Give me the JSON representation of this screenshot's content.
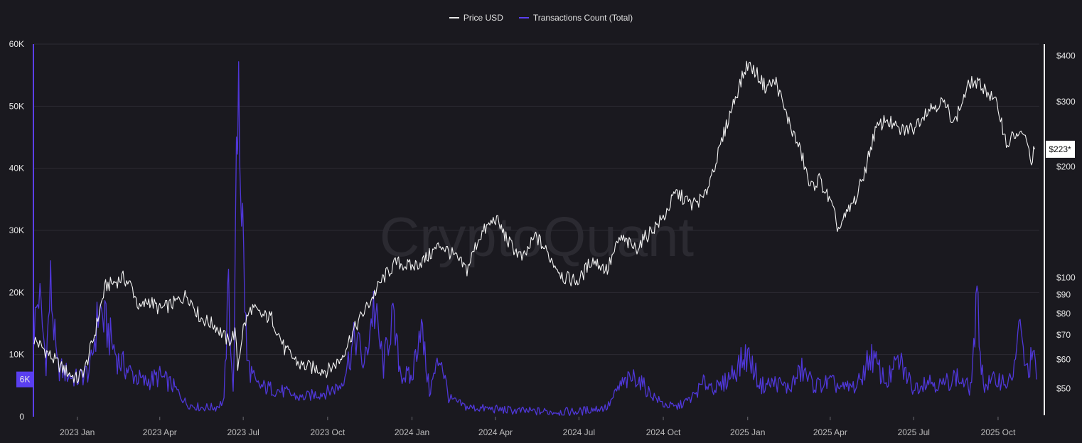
{
  "watermark": "CryptoQuant",
  "legend": [
    {
      "name": "Price USD",
      "color": "#e8e8e8"
    },
    {
      "name": "Transactions Count (Total)",
      "color": "#5a3ff0"
    }
  ],
  "current_price_label": "$223*",
  "current_tx_label": "6K",
  "chart_data": {
    "type": "line",
    "left_axis": {
      "title": "",
      "ticks": [
        "0",
        "10K",
        "20K",
        "30K",
        "40K",
        "50K",
        "60K"
      ],
      "values": [
        0,
        10000,
        20000,
        30000,
        40000,
        50000,
        60000
      ],
      "range": [
        0,
        60000
      ]
    },
    "right_axis": {
      "title": "",
      "scale": "log",
      "ticks": [
        "$50",
        "$60",
        "$70",
        "$80",
        "$90",
        "$100",
        "$200",
        "$300",
        "$400"
      ],
      "values": [
        50,
        60,
        70,
        80,
        90,
        100,
        200,
        300,
        400
      ]
    },
    "x_ticks": [
      "2023 Jan",
      "2023 Apr",
      "2023 Jul",
      "2023 Oct",
      "2024 Jan",
      "2024 Apr",
      "2024 Jul",
      "2024 Oct",
      "2025 Jan",
      "2025 Apr",
      "2025 Jul",
      "2025 Oct"
    ],
    "x_tick_dates": [
      "2023-01-01",
      "2023-04-01",
      "2023-07-01",
      "2023-10-01",
      "2024-01-01",
      "2024-04-01",
      "2024-07-01",
      "2024-10-01",
      "2025-01-01",
      "2025-04-01",
      "2025-07-01",
      "2025-10-01"
    ],
    "x_range": [
      "2022-11-15",
      "2025-11-15"
    ],
    "series": [
      {
        "name": "Price USD",
        "axis": "right",
        "points": [
          [
            "2022-11-15",
            68
          ],
          [
            "2022-12-01",
            62
          ],
          [
            "2022-12-15",
            57
          ],
          [
            "2023-01-01",
            53
          ],
          [
            "2023-01-10",
            57
          ],
          [
            "2023-01-20",
            70
          ],
          [
            "2023-02-01",
            95
          ],
          [
            "2023-02-10",
            97
          ],
          [
            "2023-02-20",
            100
          ],
          [
            "2023-03-01",
            95
          ],
          [
            "2023-03-10",
            82
          ],
          [
            "2023-03-20",
            87
          ],
          [
            "2023-04-01",
            82
          ],
          [
            "2023-04-15",
            85
          ],
          [
            "2023-05-01",
            90
          ],
          [
            "2023-05-15",
            78
          ],
          [
            "2023-06-01",
            74
          ],
          [
            "2023-06-15",
            67
          ],
          [
            "2023-06-22",
            71
          ],
          [
            "2023-06-25",
            57
          ],
          [
            "2023-07-01",
            73
          ],
          [
            "2023-07-10",
            83
          ],
          [
            "2023-07-20",
            79
          ],
          [
            "2023-08-01",
            78
          ],
          [
            "2023-08-15",
            64
          ],
          [
            "2023-09-01",
            58
          ],
          [
            "2023-09-15",
            57
          ],
          [
            "2023-10-01",
            56
          ],
          [
            "2023-10-15",
            60
          ],
          [
            "2023-11-01",
            74
          ],
          [
            "2023-11-15",
            85
          ],
          [
            "2023-12-01",
            100
          ],
          [
            "2023-12-15",
            110
          ],
          [
            "2024-01-01",
            107
          ],
          [
            "2024-01-15",
            112
          ],
          [
            "2024-02-01",
            123
          ],
          [
            "2024-02-15",
            115
          ],
          [
            "2024-03-01",
            105
          ],
          [
            "2024-03-15",
            130
          ],
          [
            "2024-04-01",
            145
          ],
          [
            "2024-04-15",
            125
          ],
          [
            "2024-05-01",
            112
          ],
          [
            "2024-05-15",
            130
          ],
          [
            "2024-06-01",
            112
          ],
          [
            "2024-06-15",
            100
          ],
          [
            "2024-07-01",
            98
          ],
          [
            "2024-07-15",
            112
          ],
          [
            "2024-08-01",
            105
          ],
          [
            "2024-08-15",
            128
          ],
          [
            "2024-09-01",
            120
          ],
          [
            "2024-09-15",
            132
          ],
          [
            "2024-10-01",
            145
          ],
          [
            "2024-10-15",
            170
          ],
          [
            "2024-11-01",
            158
          ],
          [
            "2024-11-15",
            165
          ],
          [
            "2024-12-01",
            220
          ],
          [
            "2024-12-15",
            290
          ],
          [
            "2025-01-01",
            380
          ],
          [
            "2025-01-10",
            360
          ],
          [
            "2025-01-20",
            330
          ],
          [
            "2025-02-01",
            340
          ],
          [
            "2025-02-10",
            285
          ],
          [
            "2025-02-20",
            245
          ],
          [
            "2025-03-01",
            215
          ],
          [
            "2025-03-10",
            175
          ],
          [
            "2025-03-20",
            185
          ],
          [
            "2025-04-01",
            160
          ],
          [
            "2025-04-10",
            135
          ],
          [
            "2025-04-20",
            150
          ],
          [
            "2025-05-01",
            168
          ],
          [
            "2025-05-10",
            200
          ],
          [
            "2025-05-20",
            250
          ],
          [
            "2025-06-01",
            270
          ],
          [
            "2025-06-15",
            250
          ],
          [
            "2025-07-01",
            255
          ],
          [
            "2025-07-15",
            285
          ],
          [
            "2025-08-01",
            300
          ],
          [
            "2025-08-15",
            265
          ],
          [
            "2025-09-01",
            340
          ],
          [
            "2025-09-15",
            330
          ],
          [
            "2025-10-01",
            290
          ],
          [
            "2025-10-10",
            230
          ],
          [
            "2025-10-20",
            245
          ],
          [
            "2025-11-01",
            240
          ],
          [
            "2025-11-05",
            205
          ],
          [
            "2025-11-10",
            223
          ]
        ]
      },
      {
        "name": "Transactions Count (Total)",
        "axis": "left",
        "points": [
          [
            "2022-11-15",
            14000
          ],
          [
            "2022-11-20",
            20000
          ],
          [
            "2022-11-28",
            9000
          ],
          [
            "2022-12-03",
            21000
          ],
          [
            "2022-12-10",
            8000
          ],
          [
            "2022-12-20",
            7000
          ],
          [
            "2023-01-01",
            6000
          ],
          [
            "2023-01-15",
            7500
          ],
          [
            "2023-01-25",
            17500
          ],
          [
            "2023-02-05",
            13000
          ],
          [
            "2023-02-15",
            9000
          ],
          [
            "2023-03-01",
            7000
          ],
          [
            "2023-03-15",
            5500
          ],
          [
            "2023-04-01",
            6500
          ],
          [
            "2023-04-15",
            5000
          ],
          [
            "2023-05-01",
            2000
          ],
          [
            "2023-05-15",
            1500
          ],
          [
            "2023-06-01",
            1500
          ],
          [
            "2023-06-10",
            2500
          ],
          [
            "2023-06-15",
            21000
          ],
          [
            "2023-06-20",
            3500
          ],
          [
            "2023-06-26",
            58000
          ],
          [
            "2023-06-28",
            41000
          ],
          [
            "2023-07-05",
            9000
          ],
          [
            "2023-07-15",
            5000
          ],
          [
            "2023-08-01",
            4500
          ],
          [
            "2023-08-15",
            4000
          ],
          [
            "2023-09-01",
            3000
          ],
          [
            "2023-09-15",
            3500
          ],
          [
            "2023-10-01",
            4000
          ],
          [
            "2023-10-15",
            5000
          ],
          [
            "2023-11-01",
            13000
          ],
          [
            "2023-11-10",
            8000
          ],
          [
            "2023-11-20",
            18000
          ],
          [
            "2023-12-01",
            8000
          ],
          [
            "2023-12-10",
            16000
          ],
          [
            "2023-12-20",
            7000
          ],
          [
            "2024-01-01",
            6000
          ],
          [
            "2024-01-10",
            15500
          ],
          [
            "2024-01-20",
            4000
          ],
          [
            "2024-02-01",
            10000
          ],
          [
            "2024-02-10",
            3000
          ],
          [
            "2024-03-01",
            1500
          ],
          [
            "2024-04-01",
            1200
          ],
          [
            "2024-05-01",
            900
          ],
          [
            "2024-06-01",
            800
          ],
          [
            "2024-07-01",
            800
          ],
          [
            "2024-07-15",
            1200
          ],
          [
            "2024-08-01",
            1500
          ],
          [
            "2024-08-15",
            5000
          ],
          [
            "2024-09-01",
            6500
          ],
          [
            "2024-09-15",
            4000
          ],
          [
            "2024-10-01",
            2000
          ],
          [
            "2024-10-15",
            1500
          ],
          [
            "2024-11-01",
            3000
          ],
          [
            "2024-11-15",
            5500
          ],
          [
            "2024-12-01",
            4500
          ],
          [
            "2024-12-15",
            7000
          ],
          [
            "2025-01-01",
            10000
          ],
          [
            "2025-01-15",
            5000
          ],
          [
            "2025-02-01",
            5500
          ],
          [
            "2025-02-15",
            4500
          ],
          [
            "2025-03-01",
            7500
          ],
          [
            "2025-03-15",
            5000
          ],
          [
            "2025-04-01",
            5500
          ],
          [
            "2025-04-15",
            4500
          ],
          [
            "2025-05-01",
            5000
          ],
          [
            "2025-05-15",
            10000
          ],
          [
            "2025-06-01",
            5500
          ],
          [
            "2025-06-15",
            9000
          ],
          [
            "2025-07-01",
            4500
          ],
          [
            "2025-07-15",
            6000
          ],
          [
            "2025-08-01",
            5000
          ],
          [
            "2025-08-15",
            6500
          ],
          [
            "2025-09-01",
            4500
          ],
          [
            "2025-09-08",
            18000
          ],
          [
            "2025-09-15",
            5000
          ],
          [
            "2025-10-01",
            6000
          ],
          [
            "2025-10-15",
            5500
          ],
          [
            "2025-10-25",
            14000
          ],
          [
            "2025-11-01",
            7000
          ],
          [
            "2025-11-08",
            10000
          ],
          [
            "2025-11-12",
            6000
          ]
        ]
      }
    ],
    "grid": true,
    "legend_position": "top-center"
  }
}
